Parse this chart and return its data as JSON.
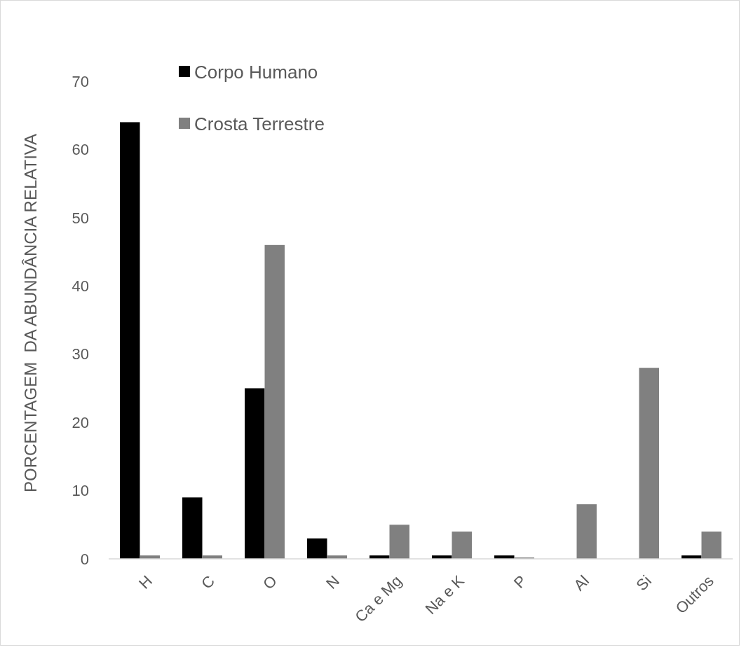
{
  "chart_data": {
    "type": "bar",
    "ylabel": "PORCENTAGEM  DA ABUNDÂNCIA RELATIVA",
    "categories": [
      "H",
      "C",
      "O",
      "N",
      "Ca e Mg",
      "Na e K",
      "P",
      "Al",
      "Si",
      "Outros"
    ],
    "series": [
      {
        "name": "Corpo Humano",
        "color": "#000000",
        "values": [
          64,
          9,
          25,
          3,
          0.5,
          0.5,
          0.5,
          0,
          0,
          0.5
        ]
      },
      {
        "name": "Crosta Terrestre",
        "color": "#808080",
        "values": [
          0.5,
          0.5,
          46,
          0.5,
          5,
          4,
          0.2,
          8,
          28,
          4
        ]
      }
    ],
    "ylim": [
      0,
      70
    ],
    "yticks": [
      0,
      10,
      20,
      30,
      40,
      50,
      60,
      70
    ],
    "grid": false,
    "legend": "top left"
  }
}
